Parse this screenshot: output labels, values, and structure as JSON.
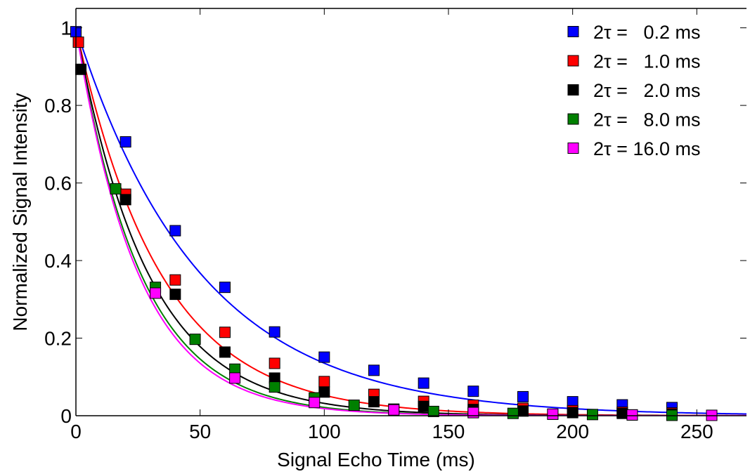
{
  "chart_data": {
    "type": "scatter",
    "title": "",
    "xlabel": "Signal Echo Time (ms)",
    "ylabel": "Normalized Signal Intensity",
    "xlim": [
      0,
      270
    ],
    "ylim": [
      0,
      1.05
    ],
    "xticks": [
      0,
      50,
      100,
      150,
      200,
      250
    ],
    "yticks": [
      0,
      0.2,
      0.4,
      0.6,
      0.8,
      1
    ],
    "xtick_labels": [
      "0",
      "50",
      "100",
      "150",
      "200",
      "250"
    ],
    "ytick_labels": [
      "0",
      "0.2",
      "0.4",
      "0.6",
      "0.8",
      "1"
    ],
    "grid": false,
    "legend_position": "top-right",
    "marker": "square",
    "fit_curves": true,
    "series": [
      {
        "name": "2τ =   0.2 ms",
        "color": "#0000ff",
        "x": [
          0,
          20,
          40,
          60,
          80,
          100,
          120,
          140,
          160,
          180,
          200,
          220,
          240
        ],
        "y": [
          0.99,
          0.706,
          0.477,
          0.331,
          0.216,
          0.151,
          0.117,
          0.084,
          0.063,
          0.049,
          0.036,
          0.028,
          0.021
        ],
        "fit_tau": 50
      },
      {
        "name": "2τ =   1.0 ms",
        "color": "#ff0000",
        "x": [
          1,
          20,
          40,
          60,
          80,
          100,
          120,
          140,
          160,
          180,
          200,
          220,
          240
        ],
        "y": [
          0.963,
          0.571,
          0.35,
          0.215,
          0.135,
          0.088,
          0.055,
          0.037,
          0.027,
          0.019,
          0.013,
          0.009,
          0.007
        ],
        "fit_tau": 34
      },
      {
        "name": "2τ =   2.0 ms",
        "color": "#000000",
        "x": [
          2,
          20,
          40,
          60,
          80,
          100,
          120,
          140,
          160,
          180,
          200,
          220,
          240
        ],
        "y": [
          0.893,
          0.557,
          0.313,
          0.164,
          0.097,
          0.061,
          0.036,
          0.024,
          0.016,
          0.012,
          0.008,
          0.006,
          0.004
        ],
        "fit_tau": 29
      },
      {
        "name": "2τ =   8.0 ms",
        "color": "#008000",
        "x": [
          16,
          32,
          48,
          64,
          80,
          96,
          112,
          128,
          144,
          160,
          176,
          192,
          208,
          224,
          240
        ],
        "y": [
          0.585,
          0.331,
          0.197,
          0.12,
          0.074,
          0.046,
          0.027,
          0.017,
          0.011,
          0.008,
          0.006,
          0.004,
          0.003,
          0.002,
          0.001
        ],
        "fit_tau": 26
      },
      {
        "name": "2τ = 16.0 ms",
        "color": "#ff00ff",
        "x": [
          32,
          64,
          96,
          128,
          160,
          192,
          224,
          256
        ],
        "y": [
          0.316,
          0.097,
          0.034,
          0.015,
          0.008,
          0.004,
          0.002,
          0.001
        ],
        "fit_tau": 25
      }
    ]
  }
}
